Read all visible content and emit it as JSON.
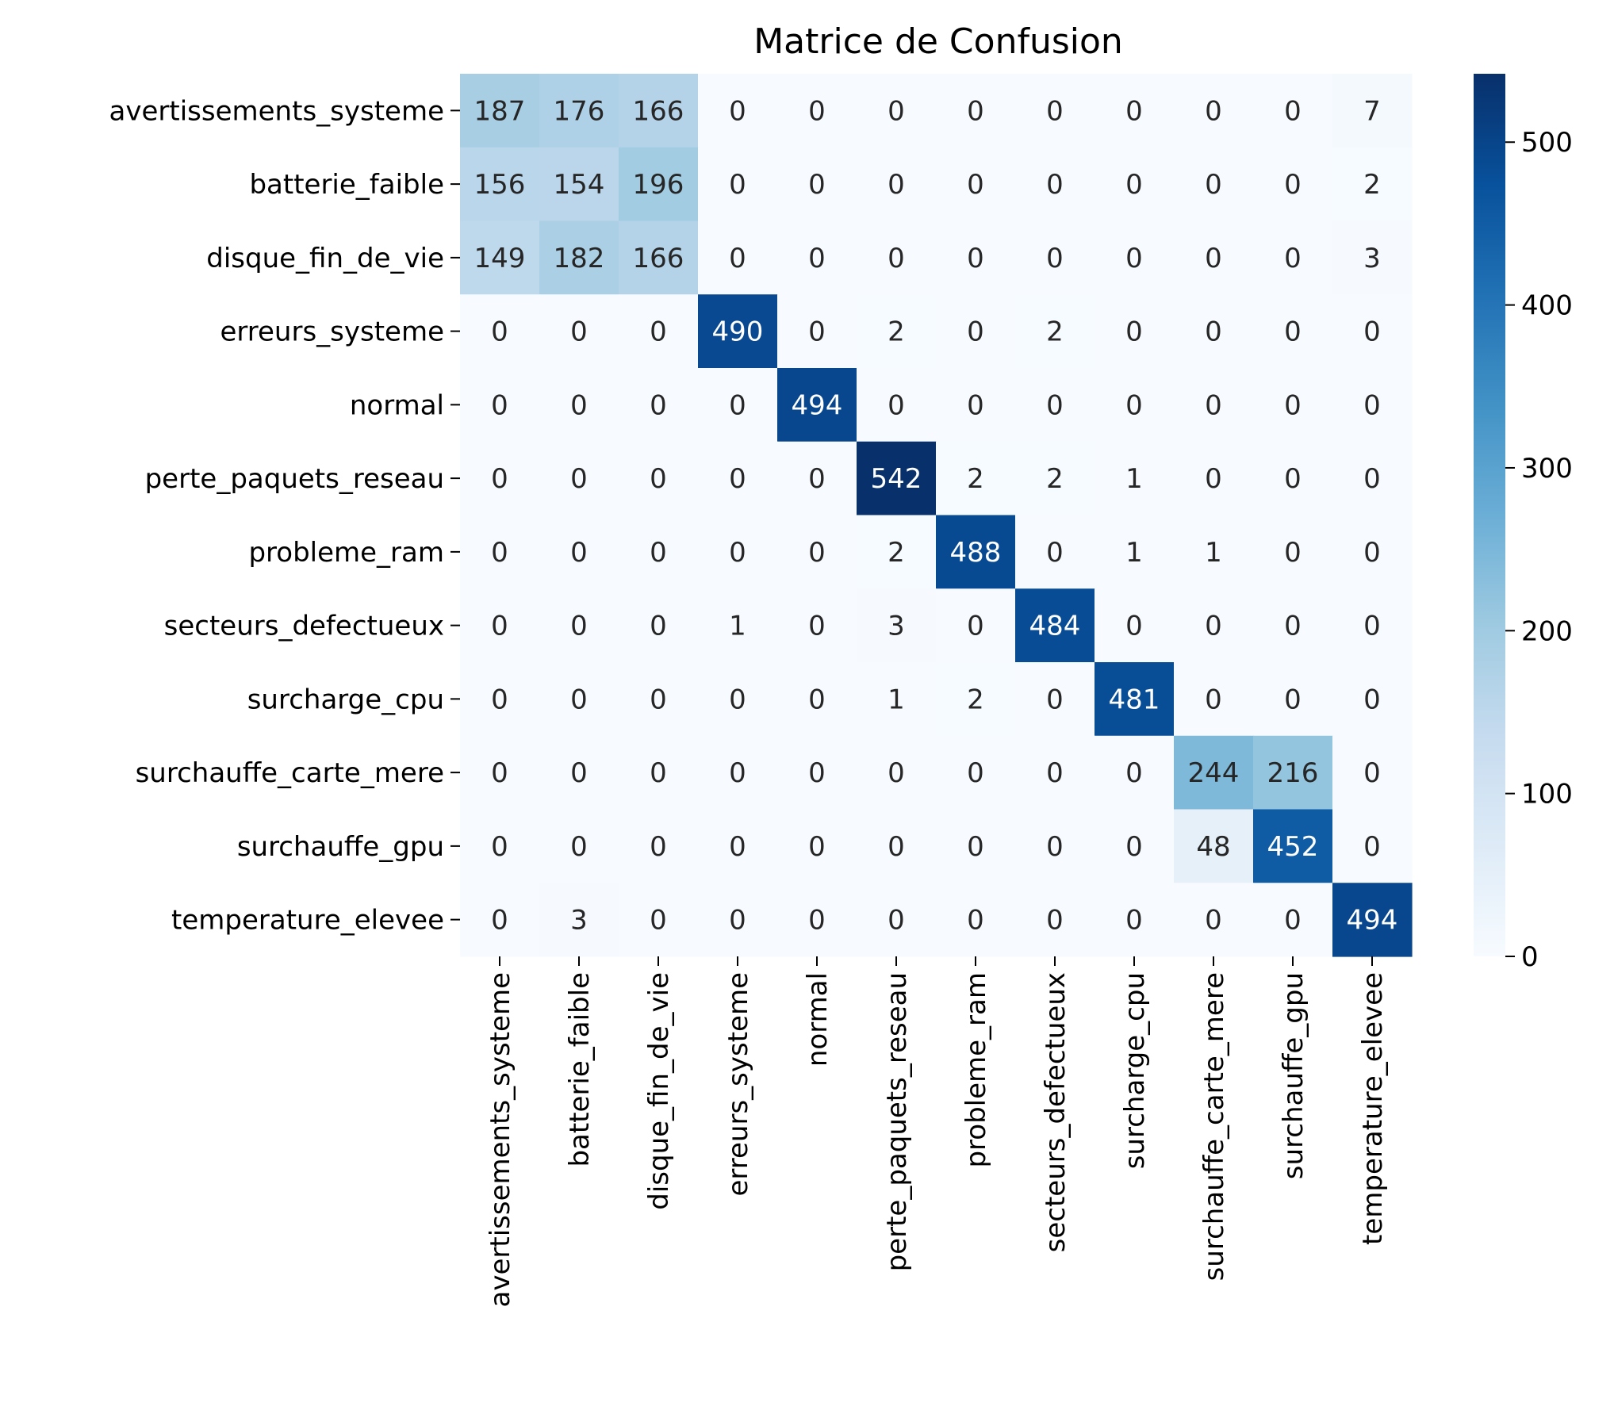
{
  "chart_data": {
    "type": "heatmap",
    "title": "Matrice de Confusion",
    "xlabel": "",
    "ylabel": "",
    "row_labels": [
      "avertissements_systeme",
      "batterie_faible",
      "disque_fin_de_vie",
      "erreurs_systeme",
      "normal",
      "perte_paquets_reseau",
      "probleme_ram",
      "secteurs_defectueux",
      "surcharge_cpu",
      "surchauffe_carte_mere",
      "surchauffe_gpu",
      "temperature_elevee"
    ],
    "col_labels": [
      "avertissements_systeme",
      "batterie_faible",
      "disque_fin_de_vie",
      "erreurs_systeme",
      "normal",
      "perte_paquets_reseau",
      "probleme_ram",
      "secteurs_defectueux",
      "surcharge_cpu",
      "surchauffe_carte_mere",
      "surchauffe_gpu",
      "temperature_elevee"
    ],
    "values": [
      [
        187,
        176,
        166,
        0,
        0,
        0,
        0,
        0,
        0,
        0,
        0,
        7
      ],
      [
        156,
        154,
        196,
        0,
        0,
        0,
        0,
        0,
        0,
        0,
        0,
        2
      ],
      [
        149,
        182,
        166,
        0,
        0,
        0,
        0,
        0,
        0,
        0,
        0,
        3
      ],
      [
        0,
        0,
        0,
        490,
        0,
        2,
        0,
        2,
        0,
        0,
        0,
        0
      ],
      [
        0,
        0,
        0,
        0,
        494,
        0,
        0,
        0,
        0,
        0,
        0,
        0
      ],
      [
        0,
        0,
        0,
        0,
        0,
        542,
        2,
        2,
        1,
        0,
        0,
        0
      ],
      [
        0,
        0,
        0,
        0,
        0,
        2,
        488,
        0,
        1,
        1,
        0,
        0
      ],
      [
        0,
        0,
        0,
        1,
        0,
        3,
        0,
        484,
        0,
        0,
        0,
        0
      ],
      [
        0,
        0,
        0,
        0,
        0,
        1,
        2,
        0,
        481,
        0,
        0,
        0
      ],
      [
        0,
        0,
        0,
        0,
        0,
        0,
        0,
        0,
        0,
        244,
        216,
        0
      ],
      [
        0,
        0,
        0,
        0,
        0,
        0,
        0,
        0,
        0,
        48,
        452,
        0
      ],
      [
        0,
        3,
        0,
        0,
        0,
        0,
        0,
        0,
        0,
        0,
        0,
        494
      ]
    ],
    "colormap": "Blues",
    "colorbar": {
      "min": 0,
      "max": 542,
      "ticks": [
        0,
        100,
        200,
        300,
        400,
        500
      ]
    },
    "grid": false
  }
}
